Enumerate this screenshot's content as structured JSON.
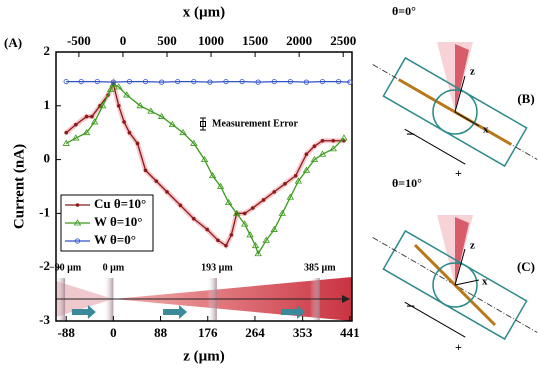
{
  "chart_data": {
    "type": "line",
    "panel_label": "(A)",
    "x_label": "z (µm)",
    "x2_label": "x (µm)",
    "y_label": "Current (nA)",
    "xlim": [
      -107,
      445
    ],
    "xticks": [
      -88,
      0,
      88,
      176,
      264,
      353,
      441
    ],
    "x2lim": [
      -760,
      2600
    ],
    "x2ticks": [
      -500,
      0,
      500,
      1000,
      1500,
      2000,
      2500
    ],
    "ylim": [
      -3,
      2
    ],
    "yticks": [
      -3,
      -2,
      -1,
      0,
      1,
      2
    ],
    "legend": "lower left",
    "series": [
      {
        "name": "Cu θ=10°",
        "color": "#8b1a1a",
        "marker": "circle",
        "x": [
          -88,
          -70,
          -50,
          -40,
          -25,
          -10,
          0,
          10,
          20,
          30,
          45,
          60,
          80,
          100,
          125,
          150,
          175,
          195,
          210,
          220,
          230,
          245,
          260,
          280,
          300,
          320,
          340,
          360,
          375,
          390,
          410,
          430
        ],
        "values": [
          0.5,
          0.65,
          0.8,
          0.8,
          1.0,
          1.2,
          1.4,
          1.0,
          0.7,
          0.5,
          0.3,
          -0.2,
          -0.4,
          -0.6,
          -0.85,
          -1.1,
          -1.3,
          -1.5,
          -1.6,
          -1.4,
          -1.0,
          -1.0,
          -0.9,
          -0.75,
          -0.6,
          -0.45,
          -0.3,
          0.1,
          0.25,
          0.35,
          0.35,
          0.35
        ]
      },
      {
        "name": "W θ=10°",
        "color": "#3a9a1a",
        "marker": "triangle",
        "x": [
          -88,
          -70,
          -50,
          -35,
          -20,
          -5,
          0,
          10,
          25,
          50,
          70,
          90,
          110,
          130,
          150,
          170,
          185,
          200,
          215,
          230,
          245,
          255,
          265,
          270,
          285,
          300,
          315,
          330,
          345,
          360,
          375,
          390,
          410,
          430
        ],
        "values": [
          0.3,
          0.4,
          0.5,
          0.7,
          1.0,
          1.3,
          1.4,
          1.35,
          1.2,
          1.0,
          0.9,
          0.8,
          0.65,
          0.5,
          0.3,
          0.0,
          -0.3,
          -0.5,
          -0.8,
          -1.0,
          -1.2,
          -1.4,
          -1.6,
          -1.75,
          -1.5,
          -1.3,
          -1.0,
          -0.7,
          -0.4,
          -0.2,
          0.0,
          0.1,
          0.2,
          0.4
        ]
      },
      {
        "name": "W θ=0°",
        "color": "#3050d0",
        "marker": "open-circle",
        "x": [
          -88,
          -60,
          -30,
          0,
          30,
          60,
          90,
          120,
          150,
          180,
          210,
          240,
          270,
          300,
          330,
          360,
          390,
          420,
          441
        ],
        "values": [
          1.45,
          1.45,
          1.45,
          1.44,
          1.45,
          1.45,
          1.44,
          1.45,
          1.45,
          1.44,
          1.45,
          1.45,
          1.44,
          1.45,
          1.45,
          1.44,
          1.45,
          1.45,
          1.44
        ]
      }
    ],
    "error_legend": "Measurement Error",
    "beam_marks": [
      {
        "value": -90,
        "label": "−90 µm"
      },
      {
        "value": 0,
        "label": "0 µm"
      },
      {
        "value": 193,
        "label": "193 µm"
      },
      {
        "value": 385,
        "label": "385 µm"
      }
    ]
  },
  "diagrams": [
    {
      "label": "(B)",
      "angle_label": "θ=0°",
      "z": "z",
      "x": "x",
      "minus": "−",
      "plus": "+"
    },
    {
      "label": "(C)",
      "angle_label": "θ=10°",
      "z": "z",
      "x": "x",
      "minus": "−",
      "plus": "+"
    }
  ]
}
